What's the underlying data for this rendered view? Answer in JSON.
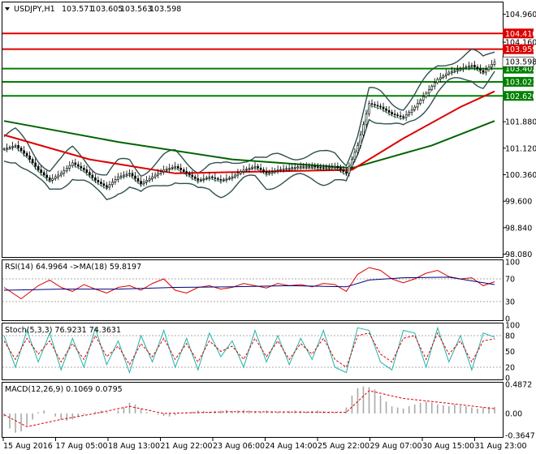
{
  "chart_data": [
    {
      "type": "candlestick",
      "title": "USDJPY,H1",
      "ohlc": [
        "103.571",
        "103.605",
        "103.563",
        "103.598"
      ],
      "ylim": [
        98.0,
        105.3
      ],
      "y_ticks": [
        "104.960",
        "104.160",
        "101.880",
        "101.120",
        "100.360",
        "99.600",
        "98.840",
        "98.080"
      ],
      "price_marker": {
        "value": 103.598,
        "label": "103.598"
      },
      "levels": [
        {
          "value": 104.41,
          "label": "104.410",
          "color": "#dd0000"
        },
        {
          "value": 103.959,
          "label": "103.959",
          "color": "#dd0000"
        },
        {
          "value": 103.402,
          "label": "103.402",
          "color": "#008000"
        },
        {
          "value": 103.023,
          "label": "103.023",
          "color": "#008000"
        },
        {
          "value": 102.62,
          "label": "102.620",
          "color": "#008000"
        }
      ],
      "x_ticks": [
        "15 Aug 2016",
        "17 Aug 05:00",
        "18 Aug 13:00",
        "21 Aug 22:00",
        "23 Aug 06:00",
        "24 Aug 14:00",
        "25 Aug 22:00",
        "29 Aug 07:00",
        "30 Aug 15:00",
        "31 Aug 23:00"
      ],
      "path_points": [
        [
          0,
          101.1
        ],
        [
          2,
          101.2
        ],
        [
          4,
          100.9
        ],
        [
          6,
          100.5
        ],
        [
          8,
          100.2
        ],
        [
          10,
          100.4
        ],
        [
          12,
          100.7
        ],
        [
          14,
          100.5
        ],
        [
          16,
          100.2
        ],
        [
          18,
          100.0
        ],
        [
          20,
          100.3
        ],
        [
          22,
          100.4
        ],
        [
          24,
          100.1
        ],
        [
          26,
          100.3
        ],
        [
          28,
          100.5
        ],
        [
          30,
          100.6
        ],
        [
          32,
          100.4
        ],
        [
          34,
          100.2
        ],
        [
          36,
          100.3
        ],
        [
          38,
          100.2
        ],
        [
          40,
          100.3
        ],
        [
          42,
          100.5
        ],
        [
          44,
          100.6
        ],
        [
          46,
          100.4
        ],
        [
          48,
          100.5
        ],
        [
          50,
          100.55
        ],
        [
          52,
          100.6
        ],
        [
          54,
          100.6
        ],
        [
          56,
          100.55
        ],
        [
          58,
          100.6
        ],
        [
          60,
          100.4
        ],
        [
          62,
          101.2
        ],
        [
          63,
          101.8
        ],
        [
          64,
          102.4
        ],
        [
          66,
          102.3
        ],
        [
          68,
          102.1
        ],
        [
          70,
          102.0
        ],
        [
          72,
          102.3
        ],
        [
          74,
          102.7
        ],
        [
          76,
          103.1
        ],
        [
          78,
          103.3
        ],
        [
          80,
          103.4
        ],
        [
          82,
          103.5
        ],
        [
          84,
          103.3
        ],
        [
          85,
          103.45
        ],
        [
          86,
          103.6
        ]
      ],
      "ma_fast": [
        [
          0,
          101.5
        ],
        [
          15,
          100.8
        ],
        [
          30,
          100.4
        ],
        [
          45,
          100.45
        ],
        [
          61,
          100.5
        ],
        [
          70,
          101.4
        ],
        [
          80,
          102.3
        ],
        [
          86,
          102.75
        ]
      ],
      "ma_slow": [
        [
          0,
          101.9
        ],
        [
          20,
          101.3
        ],
        [
          40,
          100.8
        ],
        [
          61,
          100.55
        ],
        [
          75,
          101.2
        ],
        [
          86,
          101.9
        ]
      ]
    },
    {
      "type": "line",
      "title": "RSI(14) 64.9964 ->MA(18) 59.8197",
      "ylim": [
        0,
        100
      ],
      "y_ticks": [
        "100",
        "70",
        "30",
        "0"
      ],
      "rsi": [
        [
          0,
          55
        ],
        [
          3,
          35
        ],
        [
          6,
          58
        ],
        [
          8,
          68
        ],
        [
          10,
          55
        ],
        [
          12,
          48
        ],
        [
          14,
          60
        ],
        [
          16,
          52
        ],
        [
          18,
          45
        ],
        [
          20,
          55
        ],
        [
          22,
          58
        ],
        [
          24,
          50
        ],
        [
          26,
          62
        ],
        [
          28,
          70
        ],
        [
          30,
          50
        ],
        [
          32,
          45
        ],
        [
          34,
          55
        ],
        [
          36,
          58
        ],
        [
          38,
          52
        ],
        [
          40,
          55
        ],
        [
          42,
          62
        ],
        [
          44,
          58
        ],
        [
          46,
          54
        ],
        [
          48,
          62
        ],
        [
          50,
          58
        ],
        [
          52,
          60
        ],
        [
          54,
          56
        ],
        [
          56,
          62
        ],
        [
          58,
          60
        ],
        [
          60,
          48
        ],
        [
          62,
          78
        ],
        [
          64,
          90
        ],
        [
          66,
          85
        ],
        [
          68,
          70
        ],
        [
          70,
          63
        ],
        [
          72,
          70
        ],
        [
          74,
          80
        ],
        [
          76,
          85
        ],
        [
          78,
          74
        ],
        [
          80,
          70
        ],
        [
          82,
          72
        ],
        [
          84,
          58
        ],
        [
          86,
          65
        ]
      ],
      "rsi_ma": [
        [
          0,
          50
        ],
        [
          10,
          52
        ],
        [
          20,
          52
        ],
        [
          30,
          55
        ],
        [
          40,
          56
        ],
        [
          50,
          58
        ],
        [
          60,
          56
        ],
        [
          64,
          68
        ],
        [
          70,
          72
        ],
        [
          78,
          73
        ],
        [
          86,
          60
        ]
      ]
    },
    {
      "type": "line",
      "title": "Stoch(5,3,3) 76.9231 74.3631",
      "ylim": [
        0,
        100
      ],
      "y_ticks": [
        "100",
        "80",
        "50",
        "20",
        "0"
      ],
      "main": [
        [
          0,
          80
        ],
        [
          2,
          20
        ],
        [
          4,
          90
        ],
        [
          6,
          30
        ],
        [
          8,
          85
        ],
        [
          10,
          15
        ],
        [
          12,
          75
        ],
        [
          14,
          20
        ],
        [
          16,
          95
        ],
        [
          18,
          25
        ],
        [
          20,
          70
        ],
        [
          22,
          10
        ],
        [
          24,
          80
        ],
        [
          26,
          30
        ],
        [
          28,
          90
        ],
        [
          30,
          20
        ],
        [
          32,
          75
        ],
        [
          34,
          15
        ],
        [
          36,
          85
        ],
        [
          38,
          40
        ],
        [
          40,
          70
        ],
        [
          42,
          20
        ],
        [
          44,
          90
        ],
        [
          46,
          30
        ],
        [
          48,
          80
        ],
        [
          50,
          25
        ],
        [
          52,
          75
        ],
        [
          54,
          35
        ],
        [
          56,
          90
        ],
        [
          58,
          20
        ],
        [
          60,
          10
        ],
        [
          62,
          95
        ],
        [
          64,
          90
        ],
        [
          66,
          30
        ],
        [
          68,
          15
        ],
        [
          70,
          90
        ],
        [
          72,
          85
        ],
        [
          74,
          20
        ],
        [
          76,
          95
        ],
        [
          78,
          30
        ],
        [
          80,
          80
        ],
        [
          82,
          15
        ],
        [
          84,
          85
        ],
        [
          86,
          77
        ]
      ],
      "signal": [
        [
          0,
          70
        ],
        [
          2,
          35
        ],
        [
          4,
          75
        ],
        [
          6,
          45
        ],
        [
          8,
          70
        ],
        [
          10,
          30
        ],
        [
          12,
          65
        ],
        [
          14,
          35
        ],
        [
          16,
          80
        ],
        [
          18,
          40
        ],
        [
          20,
          60
        ],
        [
          22,
          25
        ],
        [
          24,
          65
        ],
        [
          26,
          40
        ],
        [
          28,
          75
        ],
        [
          30,
          35
        ],
        [
          32,
          65
        ],
        [
          34,
          30
        ],
        [
          36,
          70
        ],
        [
          38,
          50
        ],
        [
          40,
          60
        ],
        [
          42,
          35
        ],
        [
          44,
          75
        ],
        [
          46,
          40
        ],
        [
          48,
          70
        ],
        [
          50,
          35
        ],
        [
          52,
          65
        ],
        [
          54,
          45
        ],
        [
          56,
          75
        ],
        [
          58,
          35
        ],
        [
          60,
          20
        ],
        [
          62,
          80
        ],
        [
          64,
          85
        ],
        [
          66,
          45
        ],
        [
          68,
          30
        ],
        [
          70,
          75
        ],
        [
          72,
          80
        ],
        [
          74,
          35
        ],
        [
          76,
          85
        ],
        [
          78,
          45
        ],
        [
          80,
          70
        ],
        [
          82,
          30
        ],
        [
          84,
          70
        ],
        [
          86,
          74
        ]
      ]
    },
    {
      "type": "histogram",
      "title": "MACD(12,26,9) 0.1069 0.0795",
      "ylim": [
        -0.3647,
        0.4872
      ],
      "y_ticks": [
        "0.4872",
        "0.00",
        "-0.3647"
      ],
      "histogram": [
        -0.05,
        -0.25,
        -0.32,
        -0.3,
        -0.2,
        -0.1,
        0.02,
        0.05,
        0.0,
        -0.05,
        -0.1,
        -0.12,
        -0.1,
        -0.05,
        -0.02,
        0.0,
        0.03,
        0.05,
        0.02,
        0.0,
        0.05,
        0.1,
        0.18,
        0.15,
        0.08,
        0.02,
        0.0,
        -0.02,
        -0.04,
        -0.05,
        -0.03,
        0.0,
        0.02,
        0.03,
        0.05,
        0.04,
        0.03,
        0.04,
        0.05,
        0.06,
        0.04,
        0.05,
        0.06,
        0.05,
        0.04,
        0.03,
        0.05,
        0.04,
        0.03,
        0.02,
        0.04,
        0.05,
        0.04,
        0.03,
        0.04,
        0.05,
        0.04,
        0.03,
        0.02,
        0.01,
        0.1,
        0.3,
        0.42,
        0.45,
        0.44,
        0.4,
        0.3,
        0.2,
        0.12,
        0.1,
        0.08,
        0.12,
        0.15,
        0.18,
        0.2,
        0.18,
        0.15,
        0.14,
        0.12,
        0.15,
        0.13,
        0.12,
        0.1,
        0.08,
        0.1,
        0.11,
        0.11
      ],
      "signal": [
        [
          0,
          -0.02
        ],
        [
          4,
          -0.22
        ],
        [
          10,
          -0.1
        ],
        [
          16,
          0.0
        ],
        [
          22,
          0.12
        ],
        [
          28,
          0.0
        ],
        [
          40,
          0.03
        ],
        [
          60,
          0.02
        ],
        [
          64,
          0.38
        ],
        [
          70,
          0.25
        ],
        [
          78,
          0.17
        ],
        [
          86,
          0.08
        ]
      ]
    }
  ]
}
